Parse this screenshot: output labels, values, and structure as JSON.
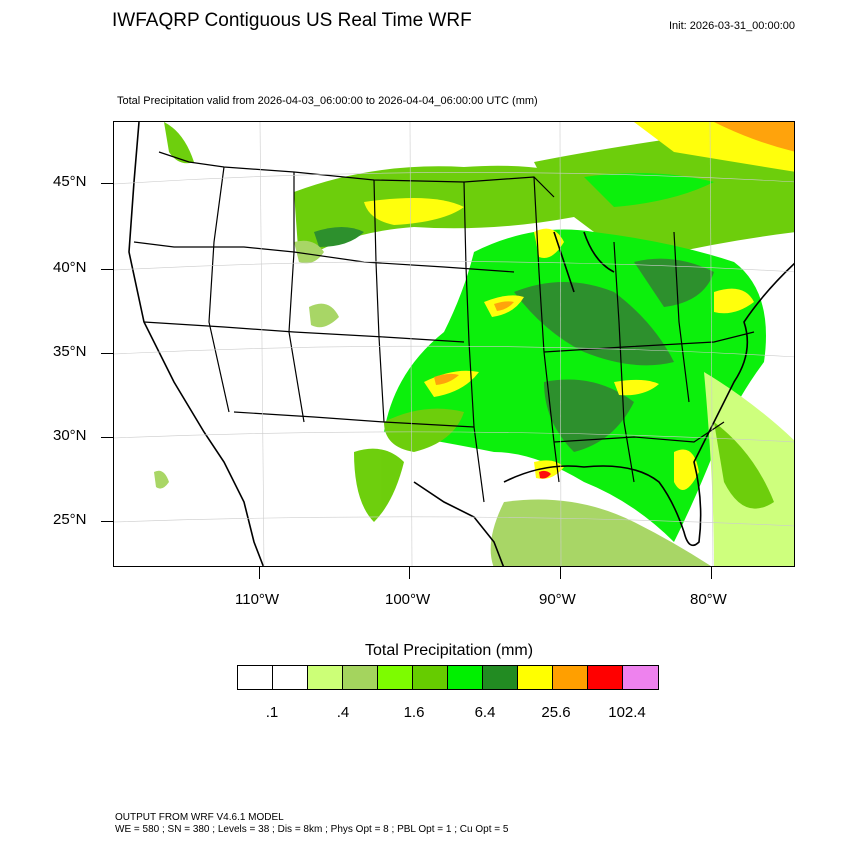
{
  "header": {
    "title": "IWFAQRP Contiguous US Real Time WRF",
    "init": "Init: 2026-03-31_00:00:00",
    "subtitle": "Total Precipitation valid from 2026-04-03_06:00:00 to 2026-04-04_06:00:00 UTC   (mm)"
  },
  "map": {
    "lat_labels": [
      "45°N",
      "40°N",
      "35°N",
      "30°N",
      "25°N"
    ],
    "lon_labels": [
      "110°W",
      "100°W",
      "90°W",
      "80°W"
    ]
  },
  "colorbar": {
    "title": "Total Precipitation  (mm)",
    "colors": [
      "#ffffff",
      "#ffffff",
      "#ccff77",
      "#a4d45e",
      "#7dfc00",
      "#66cc00",
      "#00f000",
      "#228b22",
      "#ffff00",
      "#ff9f00",
      "#ff0000",
      "#ee82ee"
    ],
    "tick_labels": [
      ".1",
      ".4",
      "1.6",
      "6.4",
      "25.6",
      "102.4"
    ]
  },
  "footer": {
    "line1": "OUTPUT FROM WRF V4.6.1 MODEL",
    "line2": "WE = 580 ; SN = 380 ; Levels = 38 ; Dis = 8km ; Phys Opt = 8 ; PBL Opt = 1 ; Cu Opt = 5"
  }
}
